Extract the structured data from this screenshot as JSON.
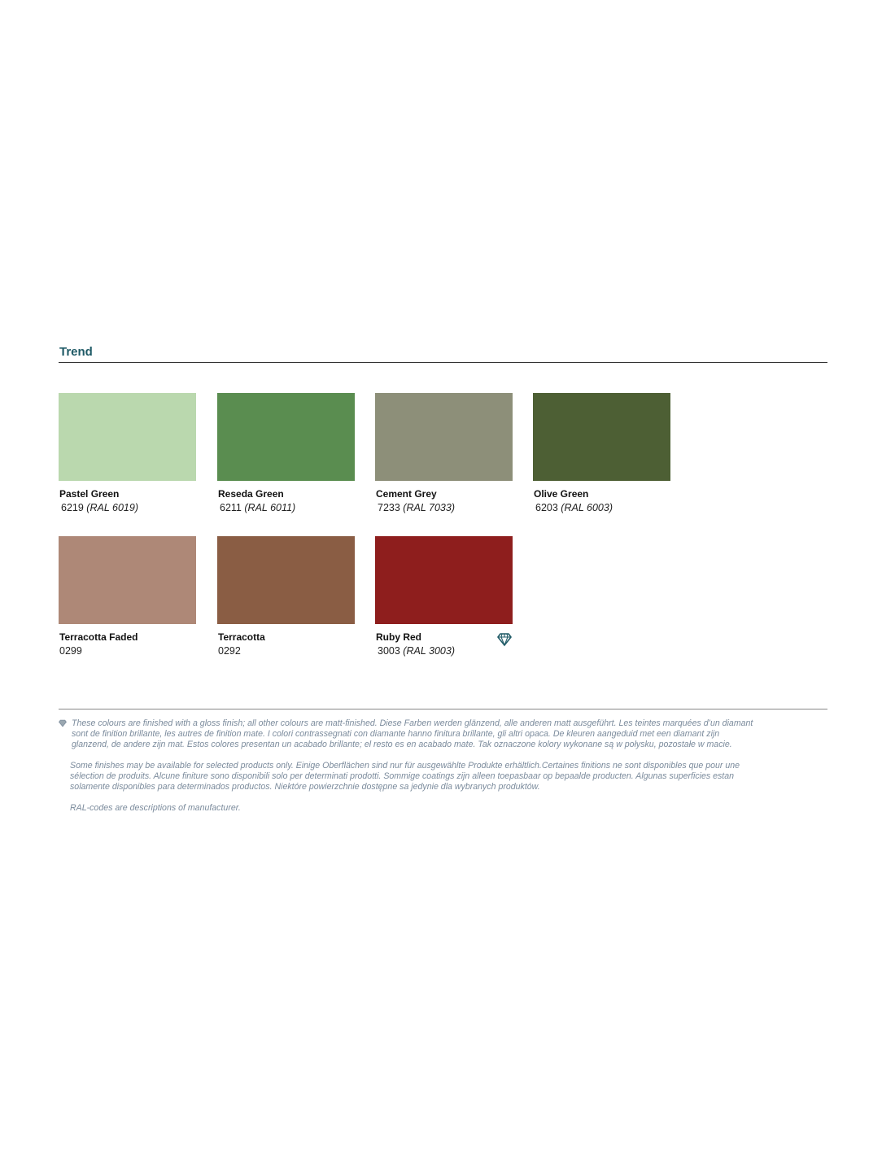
{
  "section_title": "Trend",
  "swatches": [
    {
      "name": "Pastel Green",
      "code": "6219",
      "ral": "(RAL 6019)",
      "color": "#bad8ae"
    },
    {
      "name": "Reseda Green",
      "code": "6211",
      "ral": "(RAL 6011)",
      "color": "#5a8d50"
    },
    {
      "name": "Cement Grey",
      "code": "7233",
      "ral": "(RAL 7033)",
      "color": "#8d8f79"
    },
    {
      "name": "Olive Green",
      "code": "6203",
      "ral": "(RAL 6003)",
      "color": "#4d5f34"
    },
    {
      "name": "Terracotta Faded",
      "code": "0299",
      "ral": "",
      "color": "#ae8877"
    },
    {
      "name": "Terracotta",
      "code": "0292",
      "ral": "",
      "color": "#8a5d44"
    },
    {
      "name": "Ruby Red",
      "code": "3003",
      "ral": "(RAL 3003)",
      "color": "#8e1e1d",
      "icon": "diamond-icon"
    }
  ],
  "notes": {
    "gloss": [
      "These colours are finished with a gloss finish; all other colours are matt-finished. Diese Farben werden glänzend, alle anderen matt ausgeführt. Les teintes marquées d’un diamant",
      "sont de finition brillante, les autres de finition mate. I colori contrassegnati con diamante hanno finitura brillante, gli altri opaca. De kleuren aangeduid met een diamant zijn",
      "glanzend, de andere zijn mat. Estos colores presentan un acabado brillante; el resto es en acabado mate. Tak oznaczone kolory wykonane są w połysku, pozostałe w macie."
    ],
    "availability": [
      "Some finishes may be available for selected products only. Einige Oberflächen sind nur für ausgewählte Produkte erhältlich.Certaines finitions ne sont disponibles que pour une",
      "sélection de produits. Alcune finiture sono disponibili solo per determinati prodotti. Sommige coatings zijn alleen toepasbaar op bepaalde producten. Algunas superficies estan",
      "solamente disponibles para determinados productos. Niektóre powierzchnie dostępne sa jedynie dla wybranych produktów."
    ],
    "ral": "RAL-codes are descriptions of manufacturer."
  }
}
